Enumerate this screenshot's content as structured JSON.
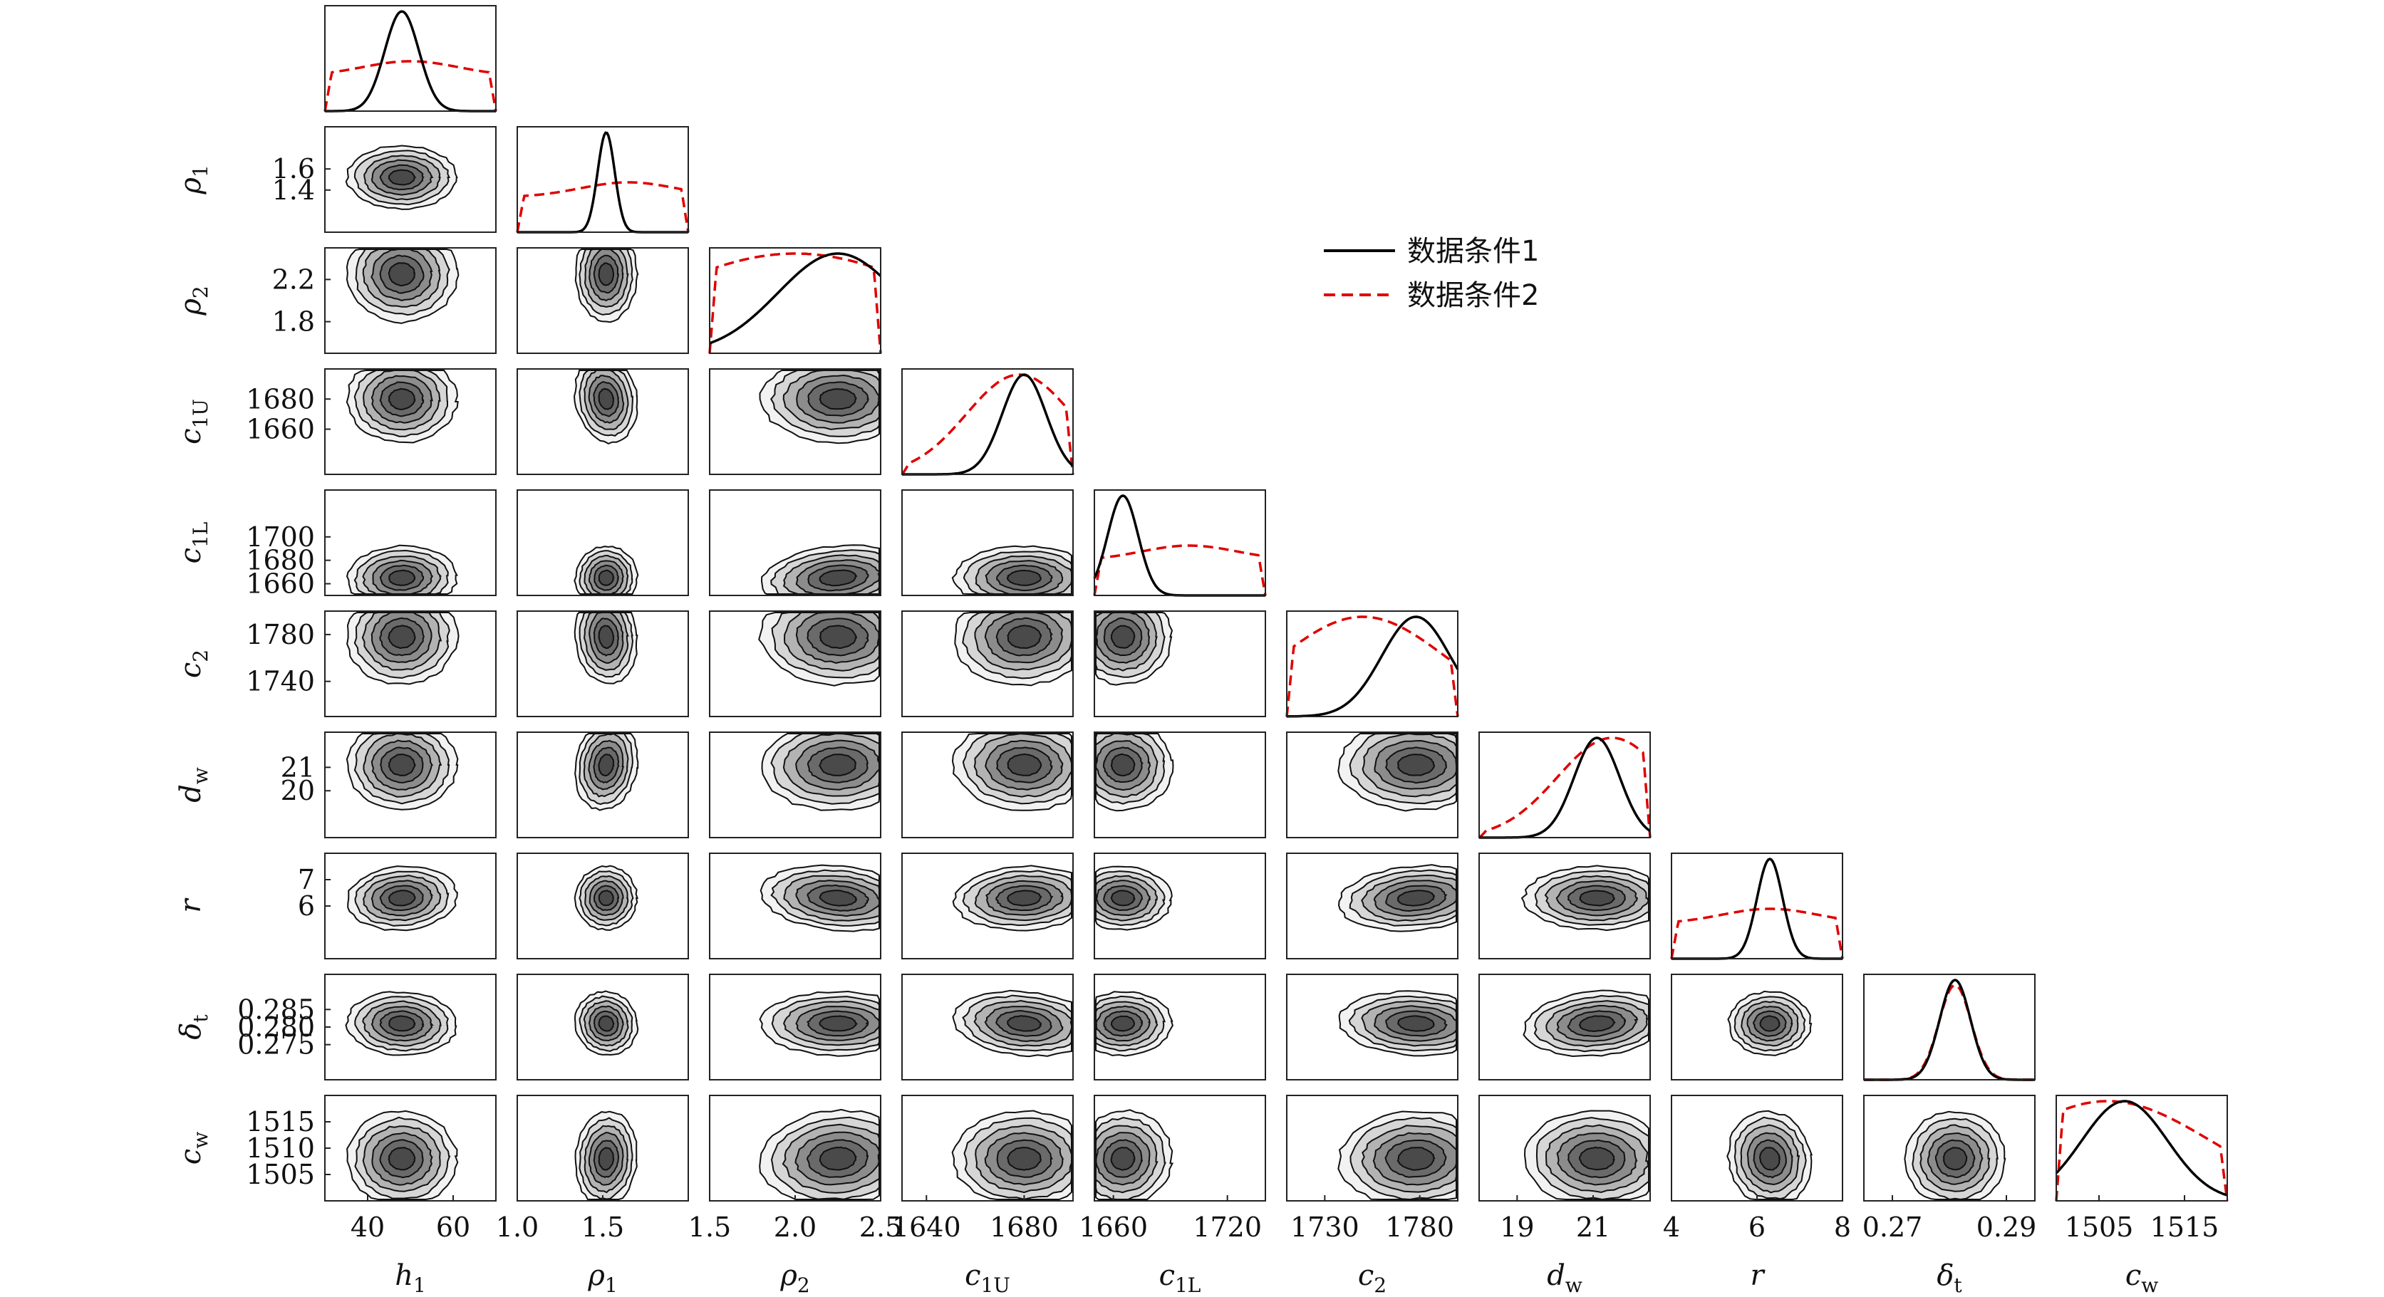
{
  "chart_data": {
    "type": "corner",
    "description_note": "",
    "parameters": [
      {
        "name": "h",
        "sub": "1",
        "range": [
          30,
          70
        ],
        "ticks": [
          40,
          60
        ],
        "tick_labels": [
          "40",
          "60"
        ],
        "peak1": 48,
        "sd1": 4,
        "peak2": 50
      },
      {
        "name": "ρ",
        "sub": "1",
        "range": [
          1.0,
          2.0
        ],
        "ticks": [
          1.0,
          1.5
        ],
        "tick_labels": [
          "1.0",
          "1.5"
        ],
        "yticks": [
          1.4,
          1.6
        ],
        "ytick_labels": [
          "1.4",
          "1.6"
        ],
        "peak1": 1.52,
        "sd1": 0.05,
        "peak2": 1.65
      },
      {
        "name": "ρ",
        "sub": "2",
        "range": [
          1.5,
          2.5
        ],
        "ticks": [
          1.5,
          2.0,
          2.5
        ],
        "tick_labels": [
          "1.5",
          "2.0",
          "2.5"
        ],
        "yticks": [
          1.8,
          2.2
        ],
        "ytick_labels": [
          "1.8",
          "2.2"
        ],
        "peak1": 2.25,
        "sd1": 0.35,
        "peak2": 2.0
      },
      {
        "name": "c",
        "sub": "1U",
        "range": [
          1630,
          1700
        ],
        "ticks": [
          1640,
          1680
        ],
        "tick_labels": [
          "1640",
          "1680"
        ],
        "yticks": [
          1660,
          1680
        ],
        "ytick_labels": [
          "1660",
          "1680"
        ],
        "peak1": 1680,
        "sd1": 9,
        "peak2": 1678
      },
      {
        "name": "c",
        "sub": "1L",
        "range": [
          1650,
          1740
        ],
        "ticks": [
          1660,
          1720
        ],
        "tick_labels": [
          "1660",
          "1720"
        ],
        "yticks": [
          1660,
          1680,
          1700
        ],
        "ytick_labels": [
          "1660",
          "1680",
          "1700"
        ],
        "peak1": 1665,
        "sd1": 8,
        "peak2": 1700
      },
      {
        "name": "c",
        "sub": "2",
        "range": [
          1710,
          1800
        ],
        "ticks": [
          1730,
          1780
        ],
        "tick_labels": [
          "1730",
          "1780"
        ],
        "yticks": [
          1740,
          1780
        ],
        "ytick_labels": [
          "1740",
          "1780"
        ],
        "peak1": 1778,
        "sd1": 18,
        "peak2": 1750
      },
      {
        "name": "d",
        "sub": "w",
        "range": [
          18,
          22.5
        ],
        "ticks": [
          19,
          21
        ],
        "tick_labels": [
          "19",
          "21"
        ],
        "yticks": [
          20,
          21
        ],
        "ytick_labels": [
          "20",
          "21"
        ],
        "peak1": 21.1,
        "sd1": 0.6,
        "peak2": 21.5
      },
      {
        "name": "r",
        "sub": "",
        "range": [
          4,
          8
        ],
        "ticks": [
          4,
          6,
          8
        ],
        "tick_labels": [
          "4",
          "6",
          "8"
        ],
        "yticks": [
          6,
          7
        ],
        "ytick_labels": [
          "6",
          "7"
        ],
        "peak1": 6.3,
        "sd1": 0.3,
        "peak2": 6.3
      },
      {
        "name": "δ",
        "sub": "t",
        "range": [
          0.265,
          0.295
        ],
        "ticks": [
          0.27,
          0.29
        ],
        "tick_labels": [
          "0.27",
          "0.29"
        ],
        "yticks": [
          0.275,
          0.28,
          0.285
        ],
        "ytick_labels": [
          "0.275",
          "0.280",
          "0.285"
        ],
        "peak1": 0.281,
        "sd1": 0.0027,
        "peak2": 0.281
      },
      {
        "name": "c",
        "sub": "w",
        "range": [
          1500,
          1520
        ],
        "ticks": [
          1505,
          1515
        ],
        "tick_labels": [
          "1505",
          "1515"
        ],
        "yticks": [
          1505,
          1510,
          1515
        ],
        "ytick_labels": [
          "1505",
          "1510",
          "1515"
        ],
        "peak1": 1508,
        "sd1": 5,
        "peak2": 1506
      }
    ],
    "legend": {
      "placement": "top-center",
      "entries": [
        {
          "label": "数据条件1",
          "color": "#000000",
          "style": "solid"
        },
        {
          "label": "数据条件2",
          "color": "#e00000",
          "style": "dashed"
        }
      ]
    },
    "colors": {
      "contour_fill": [
        "#f2f2f2",
        "#d6d6d6",
        "#b3b3b3",
        "#8c8c8c",
        "#6a6a6a",
        "#4a4a4a"
      ],
      "contour_line": "#111111"
    }
  }
}
